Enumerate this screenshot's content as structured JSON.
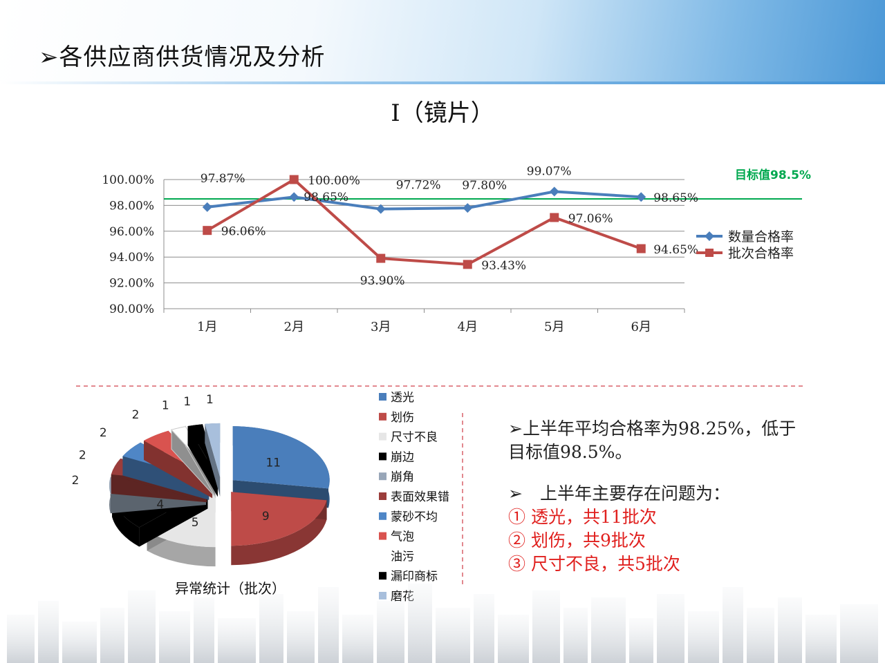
{
  "page": {
    "title": "➢各供应商供货情况及分析"
  },
  "line_chart_title": "I（镜片）",
  "target_label": "目标值98.5%",
  "pie_title": "异常统计（批次）",
  "summary": {
    "line1": "➢上半年平均合格率为98.25%，低于",
    "line2": "目标值98.5%。",
    "issues_title": "➢　上半年主要存在问题为：",
    "issues": [
      "① 透光，共11批次",
      "② 划伤，共9批次",
      "③ 尺寸不良，共5批次"
    ]
  },
  "chart_data": [
    {
      "type": "line",
      "title": "I（镜片）",
      "categories": [
        "1月",
        "2月",
        "3月",
        "4月",
        "5月",
        "6月"
      ],
      "series": [
        {
          "name": "数量合格率",
          "values": [
            97.87,
            98.65,
            97.72,
            97.8,
            99.07,
            98.65
          ],
          "labels": [
            "97.87%",
            "98.65%",
            "97.72%",
            "97.80%",
            "99.07%",
            "98.65%"
          ],
          "color": "#4a7ebb",
          "marker": "diamond"
        },
        {
          "name": "批次合格率",
          "values": [
            96.06,
            100.0,
            93.9,
            93.43,
            97.06,
            94.65
          ],
          "labels": [
            "96.06%",
            "100.00%",
            "93.90%",
            "93.43%",
            "97.06%",
            "94.65%"
          ],
          "color": "#be4b48",
          "marker": "square"
        }
      ],
      "target": {
        "value": 98.5,
        "label": "目标值98.5%",
        "color": "#00a84f"
      },
      "ylim": [
        90,
        100
      ],
      "yticks": [
        "100.00%",
        "98.00%",
        "96.00%",
        "94.00%",
        "92.00%",
        "90.00%"
      ],
      "ytick_values": [
        100,
        98,
        96,
        94,
        92,
        90
      ],
      "grid": true,
      "legend_position": "right"
    },
    {
      "type": "pie",
      "title": "异常统计（批次）",
      "legend_position": "right",
      "slices": [
        {
          "label": "透光",
          "value": 11,
          "color": "#4a7ebb"
        },
        {
          "label": "划伤",
          "value": 9,
          "color": "#be4b48"
        },
        {
          "label": "尺寸不良",
          "value": 5,
          "color": "#e6e6e6"
        },
        {
          "label": "崩边",
          "value": 4,
          "color": "#000000"
        },
        {
          "label": "崩角",
          "value": 2,
          "color": "#98a6b8"
        },
        {
          "label": "表面效果错",
          "value": 2,
          "color": "#9b3d3b"
        },
        {
          "label": "蒙砂不均",
          "value": 2,
          "color": "#4f86c6"
        },
        {
          "label": "气泡",
          "value": 2,
          "color": "#d9534f"
        },
        {
          "label": "油污",
          "value": 1,
          "color": "#ffffff"
        },
        {
          "label": "漏印商标",
          "value": 1,
          "color": "#000000"
        },
        {
          "label": "磨花",
          "value": 1,
          "color": "#a8bfdc"
        }
      ]
    }
  ]
}
